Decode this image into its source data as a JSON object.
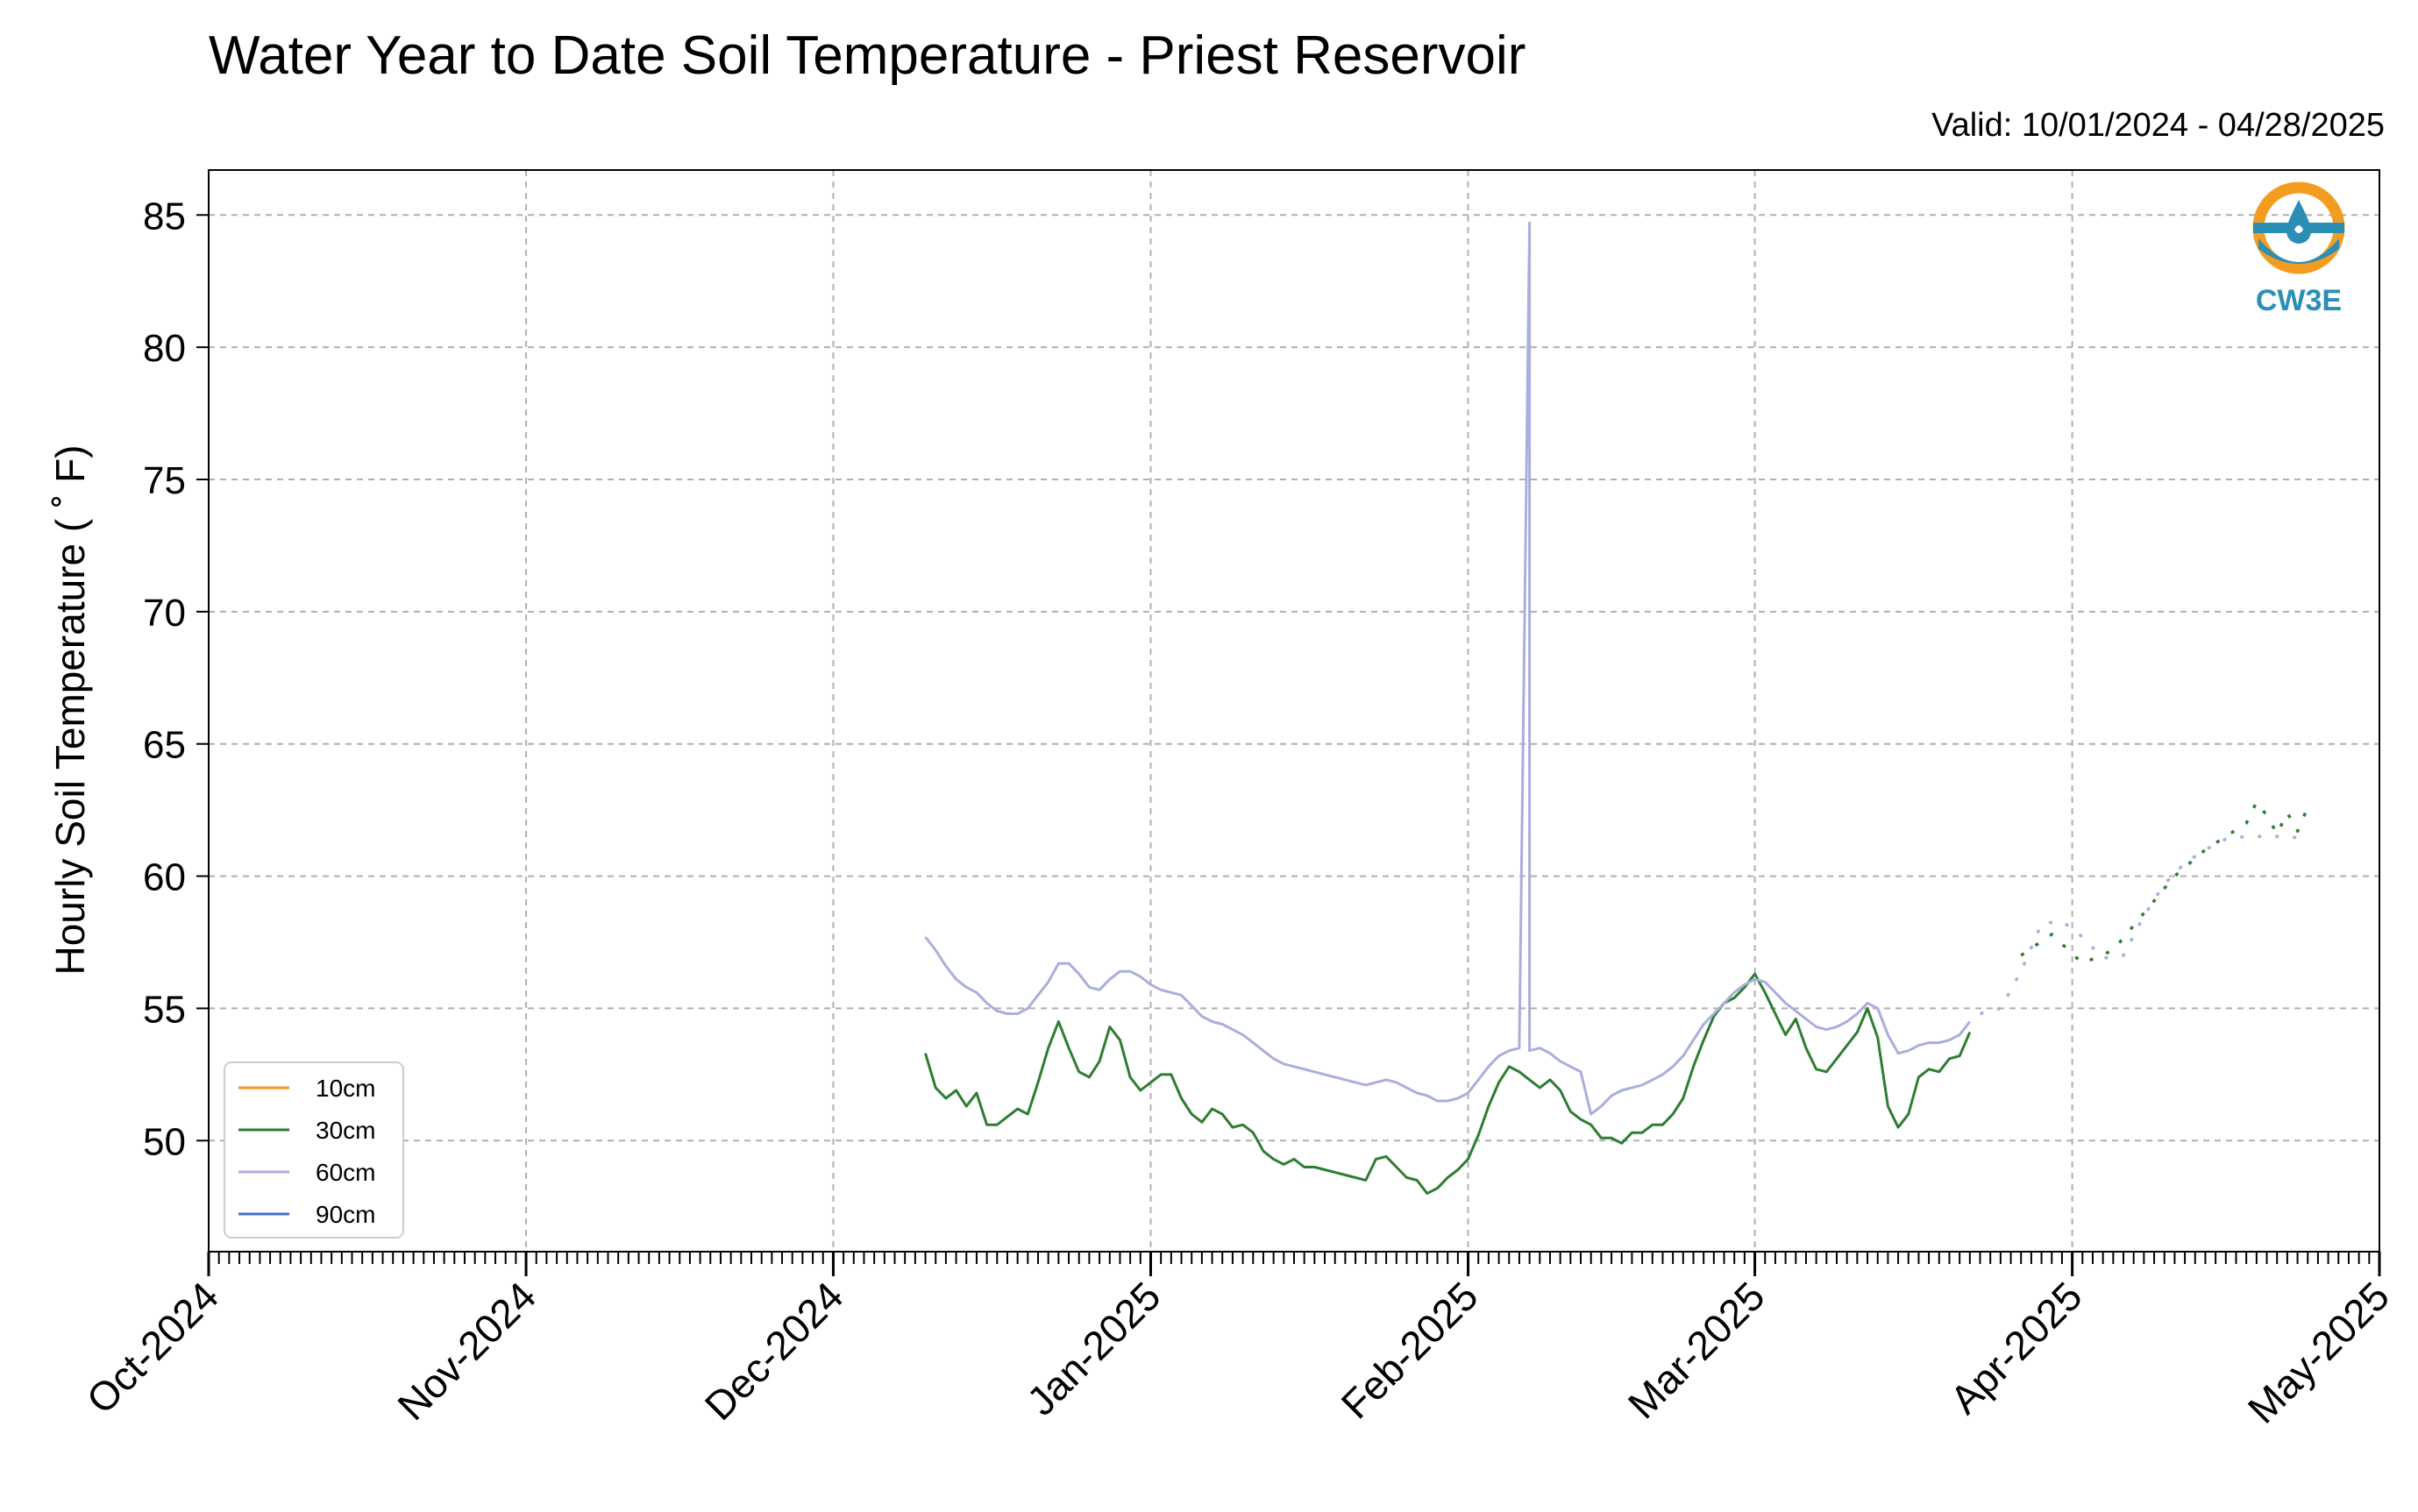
{
  "title": "Water Year to Date Soil Temperature - Priest Reservoir",
  "valid_text": "Valid: 10/01/2024 - 04/28/2025",
  "logo": {
    "name": "CW3E",
    "icon": "water-drop-icon",
    "colors": {
      "orange": "#F39C1F",
      "blue": "#2B8FB5"
    }
  },
  "chart_data": {
    "type": "line",
    "title": "Water Year to Date Soil Temperature - Priest Reservoir",
    "xlabel": "",
    "ylabel": "Hourly Soil Temperature ( ˚ F)",
    "xlim": [
      "2024-10-01",
      "2025-05-01"
    ],
    "ylim": [
      45.8,
      86.7
    ],
    "x_ticks": [
      "2024-10-01",
      "2024-11-01",
      "2024-12-01",
      "2025-01-01",
      "2025-02-01",
      "2025-03-01",
      "2025-04-01",
      "2025-05-01"
    ],
    "x_tick_labels": [
      "Oct-2024",
      "Nov-2024",
      "Dec-2024",
      "Jan-2025",
      "Feb-2025",
      "Mar-2025",
      "Apr-2025",
      "May-2025"
    ],
    "y_ticks": [
      50,
      55,
      60,
      65,
      70,
      75,
      80,
      85
    ],
    "grid": true,
    "legend_position": "lower-left",
    "series": [
      {
        "name": "10cm",
        "color": "#F7941D",
        "points": []
      },
      {
        "name": "30cm",
        "color": "#2E7D32",
        "points": [
          [
            "2024-12-10",
            53.3
          ],
          [
            "2024-12-11",
            52.0
          ],
          [
            "2024-12-12",
            51.6
          ],
          [
            "2024-12-13",
            51.9
          ],
          [
            "2024-12-14",
            51.3
          ],
          [
            "2024-12-15",
            51.8
          ],
          [
            "2024-12-16",
            50.6
          ],
          [
            "2024-12-17",
            50.6
          ],
          [
            "2024-12-18",
            50.9
          ],
          [
            "2024-12-19",
            51.2
          ],
          [
            "2024-12-20",
            51.0
          ],
          [
            "2024-12-21",
            52.2
          ],
          [
            "2024-12-22",
            53.5
          ],
          [
            "2024-12-23",
            54.5
          ],
          [
            "2024-12-24",
            53.5
          ],
          [
            "2024-12-25",
            52.6
          ],
          [
            "2024-12-26",
            52.4
          ],
          [
            "2024-12-27",
            53.0
          ],
          [
            "2024-12-28",
            54.3
          ],
          [
            "2024-12-29",
            53.8
          ],
          [
            "2024-12-30",
            52.4
          ],
          [
            "2024-12-31",
            51.9
          ],
          [
            "2025-01-01",
            52.2
          ],
          [
            "2025-01-02",
            52.5
          ],
          [
            "2025-01-03",
            52.5
          ],
          [
            "2025-01-04",
            51.6
          ],
          [
            "2025-01-05",
            51.0
          ],
          [
            "2025-01-06",
            50.7
          ],
          [
            "2025-01-07",
            51.2
          ],
          [
            "2025-01-08",
            51.0
          ],
          [
            "2025-01-09",
            50.5
          ],
          [
            "2025-01-10",
            50.6
          ],
          [
            "2025-01-11",
            50.3
          ],
          [
            "2025-01-12",
            49.6
          ],
          [
            "2025-01-13",
            49.3
          ],
          [
            "2025-01-14",
            49.1
          ],
          [
            "2025-01-15",
            49.3
          ],
          [
            "2025-01-16",
            49.0
          ],
          [
            "2025-01-17",
            49.0
          ],
          [
            "2025-01-18",
            48.9
          ],
          [
            "2025-01-19",
            48.8
          ],
          [
            "2025-01-20",
            48.7
          ],
          [
            "2025-01-21",
            48.6
          ],
          [
            "2025-01-22",
            48.5
          ],
          [
            "2025-01-23",
            49.3
          ],
          [
            "2025-01-24",
            49.4
          ],
          [
            "2025-01-25",
            49.0
          ],
          [
            "2025-01-26",
            48.6
          ],
          [
            "2025-01-27",
            48.5
          ],
          [
            "2025-01-28",
            48.0
          ],
          [
            "2025-01-29",
            48.2
          ],
          [
            "2025-01-30",
            48.6
          ],
          [
            "2025-01-31",
            48.9
          ],
          [
            "2025-02-01",
            49.3
          ],
          [
            "2025-02-02",
            50.2
          ],
          [
            "2025-02-03",
            51.3
          ],
          [
            "2025-02-04",
            52.2
          ],
          [
            "2025-02-05",
            52.8
          ],
          [
            "2025-02-06",
            52.6
          ],
          [
            "2025-02-07",
            52.3
          ],
          [
            "2025-02-08",
            52.0
          ],
          [
            "2025-02-09",
            52.3
          ],
          [
            "2025-02-10",
            51.9
          ],
          [
            "2025-02-11",
            51.1
          ],
          [
            "2025-02-12",
            50.8
          ],
          [
            "2025-02-13",
            50.6
          ],
          [
            "2025-02-14",
            50.1
          ],
          [
            "2025-02-15",
            50.1
          ],
          [
            "2025-02-16",
            49.9
          ],
          [
            "2025-02-17",
            50.3
          ],
          [
            "2025-02-18",
            50.3
          ],
          [
            "2025-02-19",
            50.6
          ],
          [
            "2025-02-20",
            50.6
          ],
          [
            "2025-02-21",
            51.0
          ],
          [
            "2025-02-22",
            51.6
          ],
          [
            "2025-02-23",
            52.8
          ],
          [
            "2025-02-24",
            53.8
          ],
          [
            "2025-02-25",
            54.7
          ],
          [
            "2025-02-26",
            55.2
          ],
          [
            "2025-02-27",
            55.4
          ],
          [
            "2025-02-28",
            55.8
          ],
          [
            "2025-03-01",
            56.3
          ],
          [
            "2025-03-02",
            55.6
          ],
          [
            "2025-03-03",
            54.8
          ],
          [
            "2025-03-04",
            54.0
          ],
          [
            "2025-03-05",
            54.6
          ],
          [
            "2025-03-06",
            53.5
          ],
          [
            "2025-03-07",
            52.7
          ],
          [
            "2025-03-08",
            52.6
          ],
          [
            "2025-03-09",
            53.1
          ],
          [
            "2025-03-10",
            53.6
          ],
          [
            "2025-03-11",
            54.1
          ],
          [
            "2025-03-12",
            55.0
          ],
          [
            "2025-03-13",
            53.9
          ],
          [
            "2025-03-14",
            51.3
          ],
          [
            "2025-03-15",
            50.5
          ],
          [
            "2025-03-16",
            51.0
          ],
          [
            "2025-03-17",
            52.4
          ],
          [
            "2025-03-18",
            52.7
          ],
          [
            "2025-03-19",
            52.6
          ],
          [
            "2025-03-20",
            53.1
          ],
          [
            "2025-03-21",
            53.2
          ],
          [
            "2025-03-22",
            54.1
          ]
        ]
      },
      {
        "name": "30cm-late",
        "color": "#2E7D32",
        "dotted": true,
        "points": [
          [
            "2025-03-27",
            57.0
          ],
          [
            "2025-03-30",
            57.8
          ],
          [
            "2025-04-02",
            56.7
          ],
          [
            "2025-04-05",
            57.2
          ],
          [
            "2025-04-08",
            58.6
          ],
          [
            "2025-04-11",
            60.0
          ],
          [
            "2025-04-14",
            61.0
          ],
          [
            "2025-04-16",
            61.5
          ],
          [
            "2025-04-18",
            62.0
          ],
          [
            "2025-04-19",
            62.8
          ],
          [
            "2025-04-20",
            62.3
          ],
          [
            "2025-04-21",
            61.6
          ],
          [
            "2025-04-22",
            62.4
          ],
          [
            "2025-04-23",
            61.7
          ],
          [
            "2025-04-24",
            62.6
          ]
        ]
      },
      {
        "name": "60cm",
        "color": "#A9AEDD",
        "points": [
          [
            "2024-12-10",
            57.7
          ],
          [
            "2024-12-11",
            57.2
          ],
          [
            "2024-12-12",
            56.6
          ],
          [
            "2024-12-13",
            56.1
          ],
          [
            "2024-12-14",
            55.8
          ],
          [
            "2024-12-15",
            55.6
          ],
          [
            "2024-12-16",
            55.2
          ],
          [
            "2024-12-17",
            54.9
          ],
          [
            "2024-12-18",
            54.8
          ],
          [
            "2024-12-19",
            54.8
          ],
          [
            "2024-12-20",
            55.0
          ],
          [
            "2024-12-21",
            55.5
          ],
          [
            "2024-12-22",
            56.0
          ],
          [
            "2024-12-23",
            56.7
          ],
          [
            "2024-12-24",
            56.7
          ],
          [
            "2024-12-25",
            56.3
          ],
          [
            "2024-12-26",
            55.8
          ],
          [
            "2024-12-27",
            55.7
          ],
          [
            "2024-12-28",
            56.1
          ],
          [
            "2024-12-29",
            56.4
          ],
          [
            "2024-12-30",
            56.4
          ],
          [
            "2024-12-31",
            56.2
          ],
          [
            "2025-01-01",
            55.9
          ],
          [
            "2025-01-02",
            55.7
          ],
          [
            "2025-01-03",
            55.6
          ],
          [
            "2025-01-04",
            55.5
          ],
          [
            "2025-01-05",
            55.1
          ],
          [
            "2025-01-06",
            54.7
          ],
          [
            "2025-01-07",
            54.5
          ],
          [
            "2025-01-08",
            54.4
          ],
          [
            "2025-01-09",
            54.2
          ],
          [
            "2025-01-10",
            54.0
          ],
          [
            "2025-01-11",
            53.7
          ],
          [
            "2025-01-12",
            53.4
          ],
          [
            "2025-01-13",
            53.1
          ],
          [
            "2025-01-14",
            52.9
          ],
          [
            "2025-01-15",
            52.8
          ],
          [
            "2025-01-16",
            52.7
          ],
          [
            "2025-01-17",
            52.6
          ],
          [
            "2025-01-18",
            52.5
          ],
          [
            "2025-01-19",
            52.4
          ],
          [
            "2025-01-20",
            52.3
          ],
          [
            "2025-01-21",
            52.2
          ],
          [
            "2025-01-22",
            52.1
          ],
          [
            "2025-01-23",
            52.2
          ],
          [
            "2025-01-24",
            52.3
          ],
          [
            "2025-01-25",
            52.2
          ],
          [
            "2025-01-26",
            52.0
          ],
          [
            "2025-01-27",
            51.8
          ],
          [
            "2025-01-28",
            51.7
          ],
          [
            "2025-01-29",
            51.5
          ],
          [
            "2025-01-30",
            51.5
          ],
          [
            "2025-01-31",
            51.6
          ],
          [
            "2025-02-01",
            51.8
          ],
          [
            "2025-02-02",
            52.3
          ],
          [
            "2025-02-03",
            52.8
          ],
          [
            "2025-02-04",
            53.2
          ],
          [
            "2025-02-05",
            53.4
          ],
          [
            "2025-02-06",
            53.5
          ],
          [
            "2025-02-07",
            84.7
          ],
          [
            "2025-02-07",
            53.4
          ],
          [
            "2025-02-08",
            53.5
          ],
          [
            "2025-02-09",
            53.3
          ],
          [
            "2025-02-10",
            53.0
          ],
          [
            "2025-02-11",
            52.8
          ],
          [
            "2025-02-12",
            52.6
          ],
          [
            "2025-02-13",
            51.0
          ],
          [
            "2025-02-14",
            51.3
          ],
          [
            "2025-02-15",
            51.7
          ],
          [
            "2025-02-16",
            51.9
          ],
          [
            "2025-02-17",
            52.0
          ],
          [
            "2025-02-18",
            52.1
          ],
          [
            "2025-02-19",
            52.3
          ],
          [
            "2025-02-20",
            52.5
          ],
          [
            "2025-02-21",
            52.8
          ],
          [
            "2025-02-22",
            53.2
          ],
          [
            "2025-02-23",
            53.8
          ],
          [
            "2025-02-24",
            54.4
          ],
          [
            "2025-02-25",
            54.8
          ],
          [
            "2025-02-26",
            55.2
          ],
          [
            "2025-02-27",
            55.6
          ],
          [
            "2025-02-28",
            55.9
          ],
          [
            "2025-03-01",
            56.1
          ],
          [
            "2025-03-02",
            56.0
          ],
          [
            "2025-03-03",
            55.6
          ],
          [
            "2025-03-04",
            55.2
          ],
          [
            "2025-03-05",
            54.9
          ],
          [
            "2025-03-06",
            54.6
          ],
          [
            "2025-03-07",
            54.3
          ],
          [
            "2025-03-08",
            54.2
          ],
          [
            "2025-03-09",
            54.3
          ],
          [
            "2025-03-10",
            54.5
          ],
          [
            "2025-03-11",
            54.8
          ],
          [
            "2025-03-12",
            55.2
          ],
          [
            "2025-03-13",
            55.0
          ],
          [
            "2025-03-14",
            54.0
          ],
          [
            "2025-03-15",
            53.3
          ],
          [
            "2025-03-16",
            53.4
          ],
          [
            "2025-03-17",
            53.6
          ],
          [
            "2025-03-18",
            53.7
          ],
          [
            "2025-03-19",
            53.7
          ],
          [
            "2025-03-20",
            53.8
          ],
          [
            "2025-03-21",
            54.0
          ],
          [
            "2025-03-22",
            54.5
          ]
        ]
      },
      {
        "name": "60cm-late",
        "color": "#A9AEDD",
        "dotted": true,
        "points": [
          [
            "2025-03-23",
            54.8
          ],
          [
            "2025-03-25",
            55.0
          ],
          [
            "2025-03-27",
            56.4
          ],
          [
            "2025-03-29",
            58.2
          ],
          [
            "2025-03-31",
            58.3
          ],
          [
            "2025-04-02",
            57.7
          ],
          [
            "2025-04-04",
            56.9
          ],
          [
            "2025-04-06",
            57.0
          ],
          [
            "2025-04-08",
            58.5
          ],
          [
            "2025-04-10",
            59.7
          ],
          [
            "2025-04-12",
            60.5
          ],
          [
            "2025-04-14",
            61.0
          ],
          [
            "2025-04-16",
            61.4
          ],
          [
            "2025-04-18",
            61.5
          ],
          [
            "2025-04-20",
            61.5
          ],
          [
            "2025-04-22",
            61.5
          ],
          [
            "2025-04-24",
            61.4
          ]
        ]
      },
      {
        "name": "90cm",
        "color": "#4472C4",
        "points": []
      }
    ]
  },
  "legend": [
    {
      "label": "10cm",
      "color": "#F7941D"
    },
    {
      "label": "30cm",
      "color": "#2E7D32"
    },
    {
      "label": "60cm",
      "color": "#A9AEDD"
    },
    {
      "label": "90cm",
      "color": "#4472C4"
    }
  ]
}
